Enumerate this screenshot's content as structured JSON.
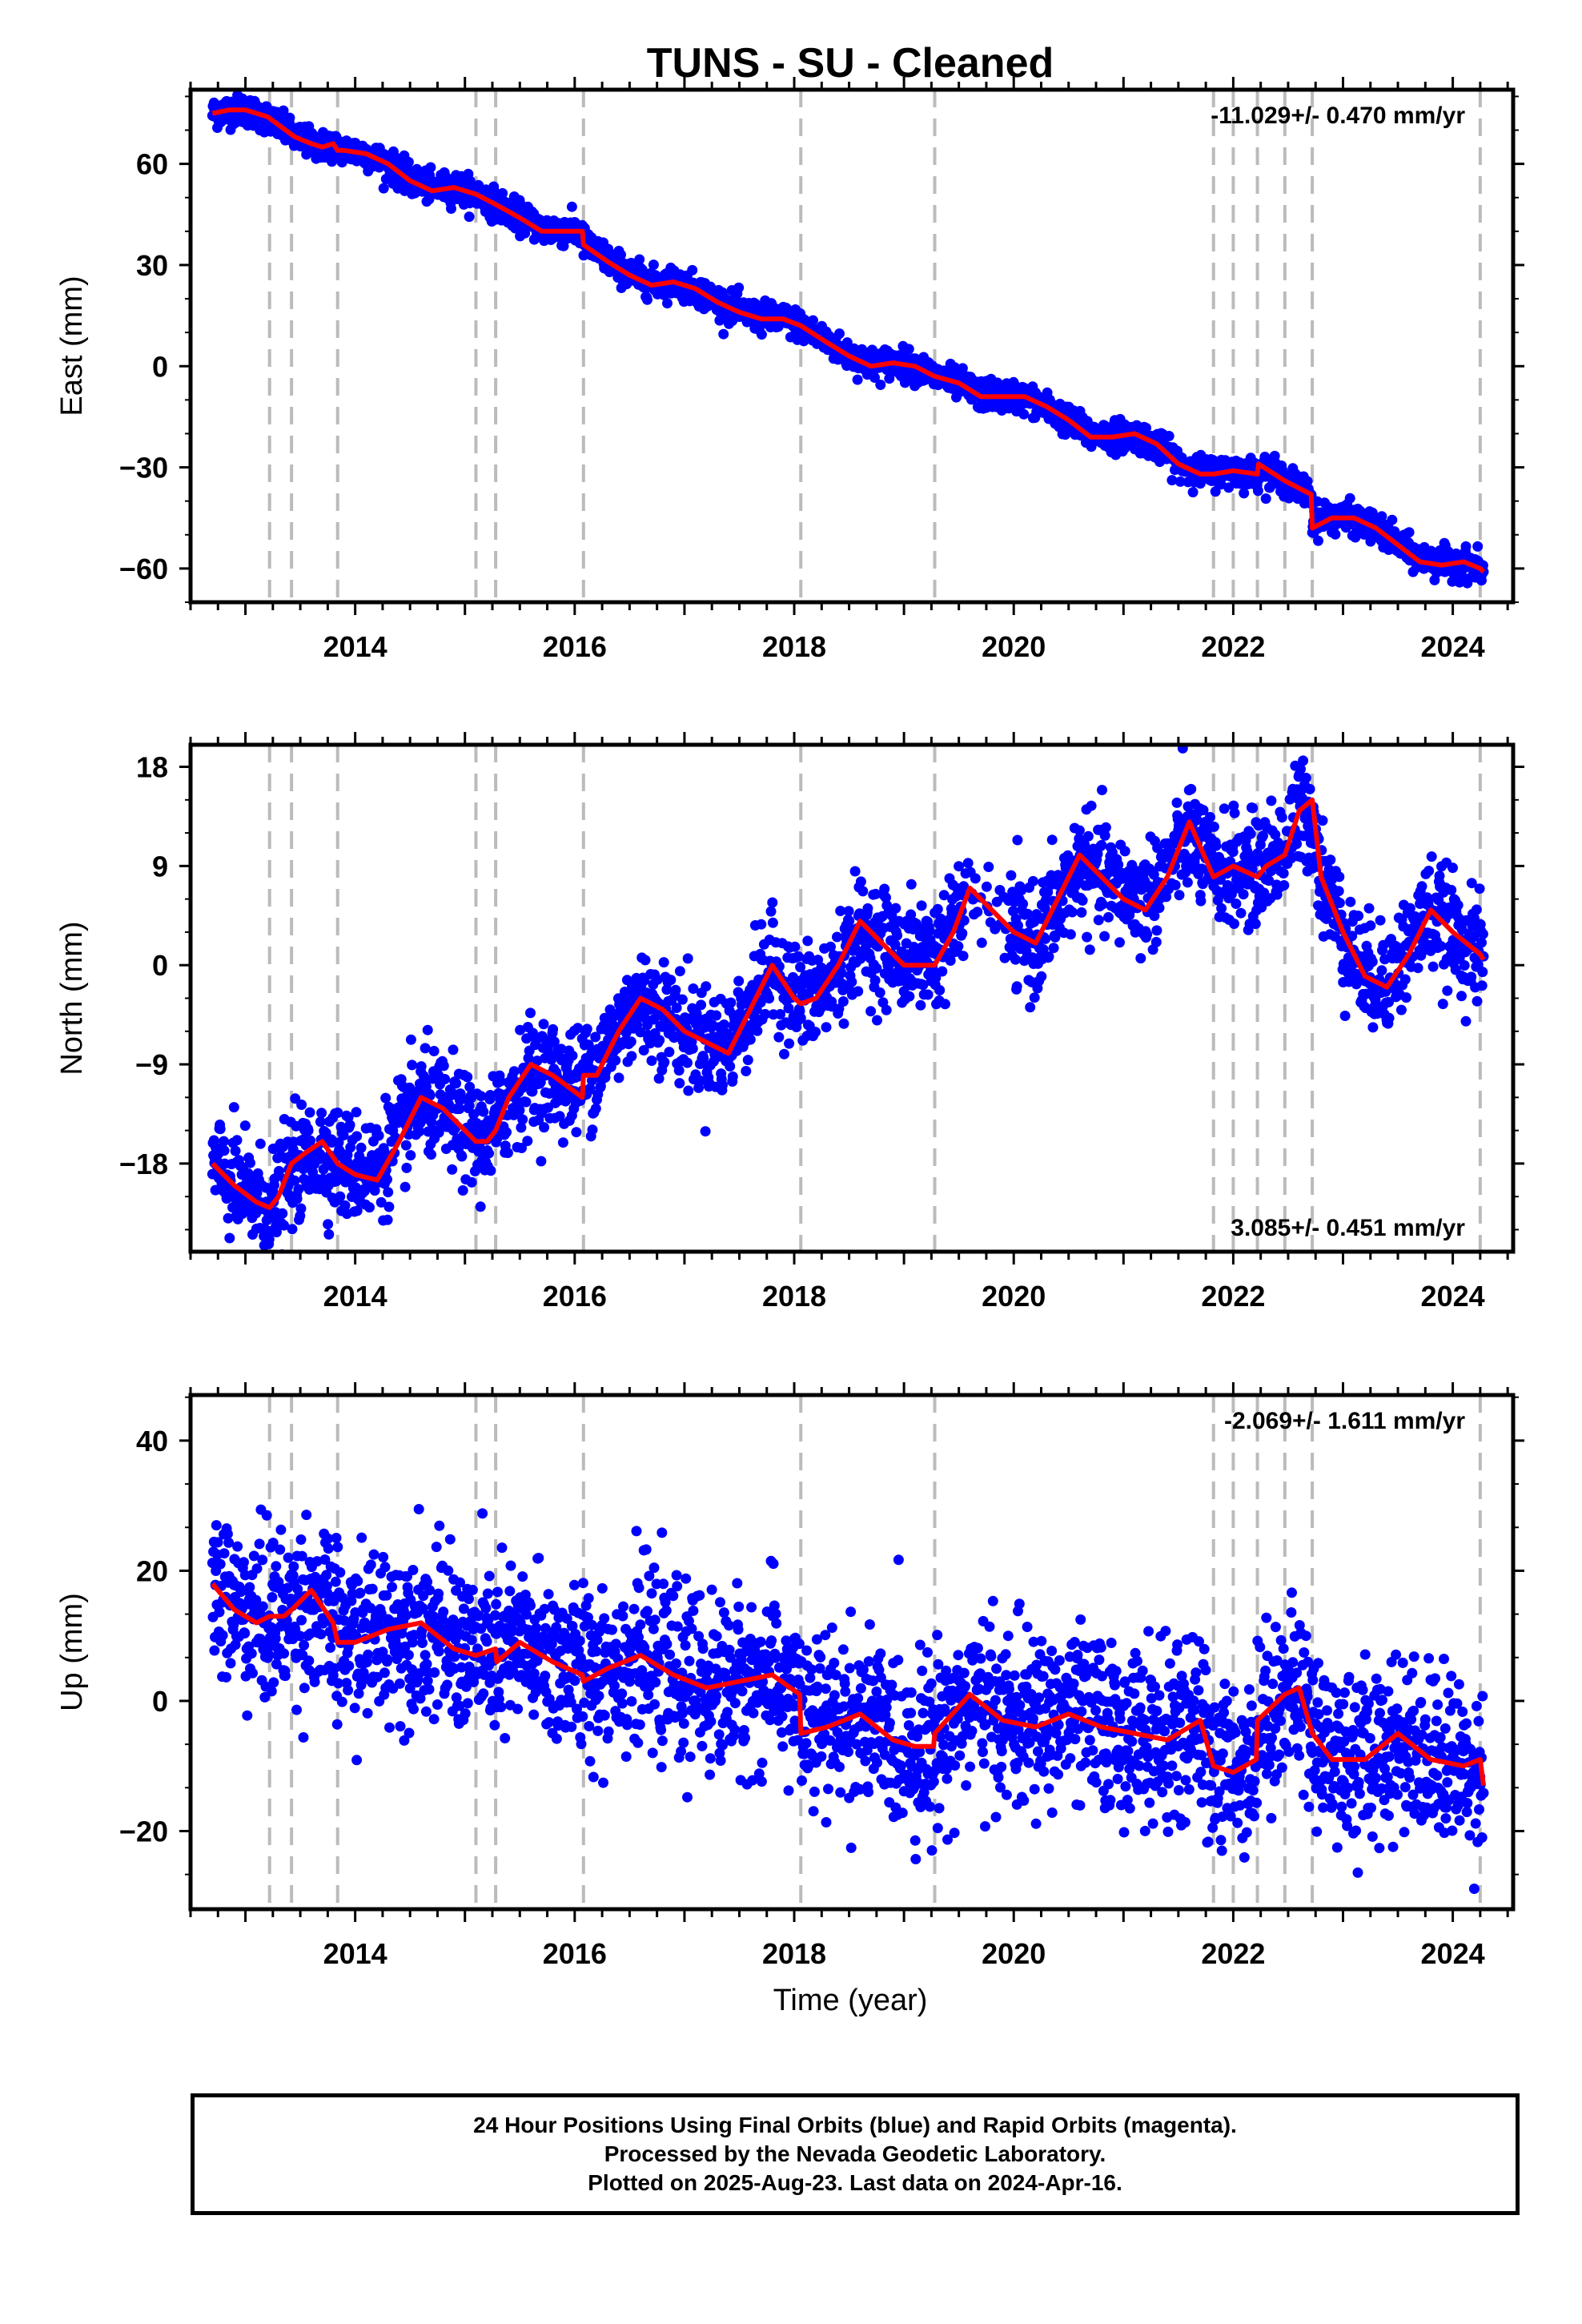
{
  "figure": {
    "title": "TUNS  - SU - Cleaned",
    "xlabel": "Time (year)"
  },
  "footer": {
    "line1": "24 Hour Positions Using Final Orbits (blue) and Rapid Orbits (magenta).",
    "line2": "Processed by the Nevada Geodetic Laboratory.",
    "line3": "Plotted on 2025-Aug-23. Last data on 2024-Apr-16."
  },
  "colors": {
    "points": "#0000ff",
    "model": "#ff0000",
    "breaks": "#bbbbbb",
    "frame": "#000000"
  },
  "chart_data": [
    {
      "type": "scatter",
      "component": "East",
      "ylabel": "East (mm)",
      "rate_text": "-11.029+/- 0.470 mm/yr",
      "rate_position": "top-right",
      "xlim": [
        2012.5,
        2024.55
      ],
      "ylim": [
        -70,
        82
      ],
      "x_ticks": [
        2014,
        2016,
        2018,
        2020,
        2022,
        2024
      ],
      "y_ticks": [
        60,
        30,
        0,
        -30,
        -60
      ],
      "breaks": [
        2013.22,
        2013.42,
        2013.84,
        2015.1,
        2015.28,
        2016.08,
        2018.06,
        2019.28,
        2021.82,
        2022.0,
        2022.22,
        2022.47,
        2022.72,
        2024.25
      ],
      "model": {
        "x": [
          2012.7,
          2012.85,
          2013.0,
          2013.2,
          2013.45,
          2013.6,
          2013.7,
          2013.8,
          2013.84,
          2013.9,
          2014.1,
          2014.3,
          2014.5,
          2014.7,
          2014.9,
          2015.1,
          2015.28,
          2015.5,
          2015.7,
          2015.9,
          2016.07,
          2016.08,
          2016.3,
          2016.5,
          2016.7,
          2016.9,
          2017.1,
          2017.3,
          2017.5,
          2017.7,
          2017.9,
          2018.06,
          2018.3,
          2018.5,
          2018.7,
          2018.9,
          2019.1,
          2019.28,
          2019.5,
          2019.7,
          2019.9,
          2020.1,
          2020.3,
          2020.5,
          2020.7,
          2020.9,
          2021.1,
          2021.3,
          2021.5,
          2021.7,
          2021.82,
          2022.0,
          2022.22,
          2022.23,
          2022.47,
          2022.71,
          2022.72,
          2022.9,
          2023.1,
          2023.3,
          2023.5,
          2023.7,
          2023.9,
          2024.1,
          2024.25,
          2024.28
        ],
        "y": [
          75,
          76,
          76,
          74,
          68,
          66,
          65,
          66,
          64,
          64,
          63,
          60,
          55,
          52,
          53,
          51,
          48,
          44,
          40,
          40,
          40,
          36,
          31,
          27,
          24,
          25,
          23,
          19,
          16,
          14,
          14,
          12,
          7,
          3,
          0,
          1,
          0,
          -3,
          -5,
          -9,
          -9,
          -9,
          -12,
          -16,
          -21,
          -21,
          -20,
          -23,
          -29,
          -32,
          -32,
          -31,
          -32,
          -29,
          -34,
          -38,
          -48,
          -45,
          -45,
          -48,
          -53,
          -58,
          -59,
          -58,
          -60,
          -61
        ]
      },
      "points_envelope": {
        "x": [
          2012.7,
          2013.0,
          2013.5,
          2014.0,
          2014.5,
          2015.0,
          2015.5,
          2016.0,
          2016.5,
          2017.0,
          2017.5,
          2018.0,
          2018.5,
          2019.0,
          2019.5,
          2020.0,
          2020.5,
          2021.0,
          2021.5,
          2022.0,
          2022.5,
          2023.0,
          2023.5,
          2024.0,
          2024.28
        ],
        "center": [
          75,
          76,
          67,
          64,
          56,
          53,
          45,
          40,
          29,
          24,
          17,
          13,
          4,
          1,
          -6,
          -9,
          -17,
          -20,
          -28,
          -31,
          -34,
          -45,
          -52,
          -58,
          -61
        ],
        "spread": [
          2.2
        ]
      }
    },
    {
      "type": "scatter",
      "component": "North",
      "ylabel": "North (mm)",
      "rate_text": "3.085+/- 0.451 mm/yr",
      "rate_position": "bottom-right",
      "xlim": [
        2012.5,
        2024.55
      ],
      "ylim": [
        -26,
        20
      ],
      "x_ticks": [
        2014,
        2016,
        2018,
        2020,
        2022,
        2024
      ],
      "y_ticks": [
        18,
        9,
        0,
        -9,
        -18
      ],
      "breaks": [
        2013.22,
        2013.42,
        2013.84,
        2015.1,
        2015.28,
        2016.08,
        2018.06,
        2019.28,
        2021.82,
        2022.0,
        2022.22,
        2022.47,
        2022.72,
        2024.25
      ],
      "model": {
        "x": [
          2012.7,
          2012.9,
          2013.1,
          2013.22,
          2013.3,
          2013.42,
          2013.55,
          2013.7,
          2013.84,
          2014.0,
          2014.2,
          2014.4,
          2014.6,
          2014.8,
          2015.0,
          2015.1,
          2015.2,
          2015.28,
          2015.4,
          2015.6,
          2015.8,
          2016.07,
          2016.08,
          2016.2,
          2016.4,
          2016.6,
          2016.8,
          2017.0,
          2017.2,
          2017.4,
          2017.6,
          2017.8,
          2018.0,
          2018.06,
          2018.2,
          2018.4,
          2018.6,
          2018.8,
          2019.0,
          2019.28,
          2019.45,
          2019.6,
          2019.8,
          2020.0,
          2020.2,
          2020.4,
          2020.6,
          2020.8,
          2021.0,
          2021.2,
          2021.4,
          2021.6,
          2021.82,
          2022.0,
          2022.22,
          2022.3,
          2022.47,
          2022.6,
          2022.72,
          2022.8,
          2023.0,
          2023.2,
          2023.4,
          2023.6,
          2023.8,
          2024.0,
          2024.25,
          2024.28
        ],
        "y": [
          -18,
          -20,
          -21.5,
          -22,
          -21,
          -18,
          -17,
          -16,
          -18,
          -19,
          -19.5,
          -16,
          -12,
          -13,
          -15,
          -16,
          -16,
          -15,
          -12,
          -9,
          -10,
          -12,
          -10,
          -10,
          -6,
          -3,
          -4,
          -6,
          -7,
          -8,
          -4,
          0,
          -3,
          -3.5,
          -3,
          0,
          4,
          2,
          0,
          0,
          3,
          7,
          5,
          3,
          2,
          6,
          10,
          8,
          6,
          5,
          8,
          13,
          8,
          9,
          8,
          9,
          10,
          14,
          15,
          8,
          3,
          -1,
          -2,
          1,
          5,
          3,
          1,
          0.5
        ]
      },
      "points_envelope": {
        "x": [
          2012.7,
          2013.2,
          2013.8,
          2014.5,
          2015.2,
          2015.8,
          2016.5,
          2017.2,
          2017.8,
          2018.3,
          2018.8,
          2019.5,
          2020.2,
          2020.8,
          2021.5,
          2022.0,
          2022.6,
          2023.2,
          2023.7,
          2024.28
        ],
        "center": [
          -19,
          -22,
          -18,
          -13,
          -15,
          -10,
          -4,
          -7,
          -1,
          -3,
          2,
          5,
          2,
          8,
          10,
          8,
          13,
          -1,
          5,
          0.5
        ],
        "spread": [
          2.4
        ]
      }
    },
    {
      "type": "scatter",
      "component": "Up",
      "ylabel": "Up (mm)",
      "rate_text": "-2.069+/- 1.611 mm/yr",
      "rate_position": "top-right",
      "xlim": [
        2012.5,
        2024.55
      ],
      "ylim": [
        -32,
        47
      ],
      "x_ticks": [
        2014,
        2016,
        2018,
        2020,
        2022,
        2024
      ],
      "y_ticks": [
        40,
        20,
        0,
        -20
      ],
      "breaks": [
        2013.22,
        2013.42,
        2013.84,
        2015.1,
        2015.28,
        2016.08,
        2018.06,
        2019.28,
        2021.82,
        2022.0,
        2022.22,
        2022.47,
        2022.72,
        2024.25
      ],
      "model": {
        "x": [
          2012.7,
          2012.9,
          2013.1,
          2013.22,
          2013.35,
          2013.42,
          2013.6,
          2013.8,
          2013.84,
          2014.0,
          2014.3,
          2014.6,
          2014.9,
          2015.1,
          2015.28,
          2015.29,
          2015.5,
          2015.8,
          2016.07,
          2016.08,
          2016.3,
          2016.6,
          2016.9,
          2017.2,
          2017.5,
          2017.8,
          2018.05,
          2018.06,
          2018.3,
          2018.6,
          2018.9,
          2019.1,
          2019.27,
          2019.28,
          2019.6,
          2019.9,
          2020.2,
          2020.5,
          2020.8,
          2021.1,
          2021.4,
          2021.7,
          2021.82,
          2022.0,
          2022.21,
          2022.22,
          2022.47,
          2022.6,
          2022.72,
          2022.9,
          2023.2,
          2023.5,
          2023.8,
          2024.1,
          2024.25,
          2024.28
        ],
        "y": [
          18,
          14,
          12,
          13,
          13,
          14,
          17,
          12,
          9,
          9,
          11,
          12,
          8,
          7,
          8,
          6,
          9,
          6,
          4,
          3,
          5,
          7,
          4,
          2,
          3,
          4,
          1,
          -5,
          -4,
          -2,
          -6,
          -7,
          -7,
          -5,
          1,
          -3,
          -4,
          -2,
          -4,
          -5,
          -6,
          -3,
          -10,
          -11,
          -9,
          -3,
          1,
          2,
          -5,
          -9,
          -9,
          -5,
          -9,
          -10,
          -9,
          -13
        ]
      },
      "points_envelope": {
        "x": [
          2012.7,
          2013.2,
          2013.8,
          2014.5,
          2015.2,
          2015.8,
          2016.5,
          2017.2,
          2017.8,
          2018.5,
          2019.2,
          2019.8,
          2020.5,
          2021.2,
          2021.9,
          2022.6,
          2023.2,
          2023.8,
          2024.28
        ],
        "center": [
          18,
          13,
          10,
          12,
          7,
          7,
          7,
          3,
          2,
          -4,
          -7,
          -1,
          -1,
          -5,
          -9,
          1,
          -9,
          -6,
          -12
        ],
        "spread": [
          6.5
        ]
      }
    }
  ]
}
